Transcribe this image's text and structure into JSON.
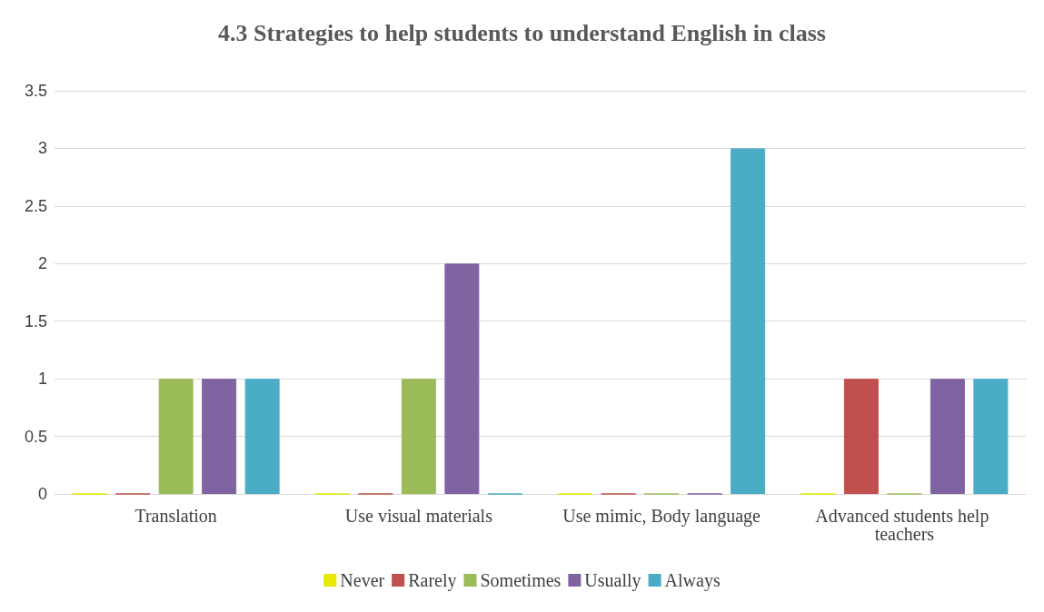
{
  "chart_data": {
    "type": "bar",
    "title": "4.3 Strategies to help students to understand English in class",
    "categories": [
      "Translation",
      "Use visual materials",
      "Use mimic, Body language",
      "Advanced students help teachers"
    ],
    "series": [
      {
        "name": "Never",
        "color": "#e8e800",
        "values": [
          0,
          0,
          0,
          0
        ]
      },
      {
        "name": "Rarely",
        "color": "#c0504d",
        "values": [
          0,
          0,
          0,
          1
        ]
      },
      {
        "name": "Sometimes",
        "color": "#9bbb59",
        "values": [
          1,
          1,
          0,
          0
        ]
      },
      {
        "name": "Usually",
        "color": "#8064a2",
        "values": [
          1,
          2,
          0,
          1
        ]
      },
      {
        "name": "Always",
        "color": "#4bacc6",
        "values": [
          1,
          0,
          3,
          1
        ]
      }
    ],
    "ylim": [
      0,
      3.5
    ],
    "yticks": [
      0,
      0.5,
      1,
      1.5,
      2,
      2.5,
      3,
      3.5
    ],
    "grid": "y",
    "legend": "bottom"
  }
}
